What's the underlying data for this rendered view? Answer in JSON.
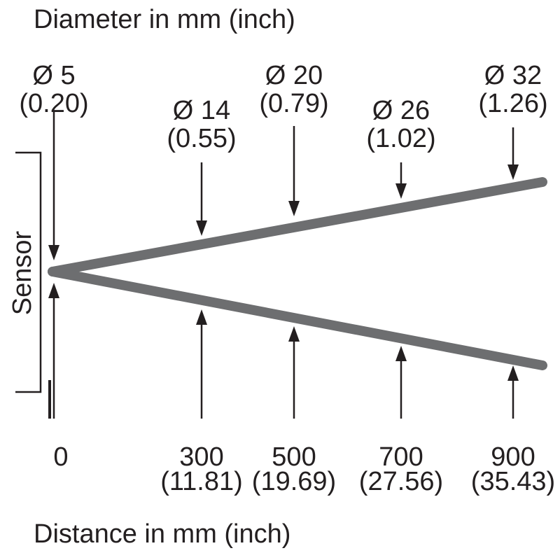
{
  "title": "Diameter in mm (inch)",
  "x_label": "Distance in mm (inch)",
  "sensor_label": "Sensor",
  "diameters": [
    {
      "mm": "Ø 5",
      "inch": "(0.20)"
    },
    {
      "mm": "Ø 14",
      "inch": "(0.55)"
    },
    {
      "mm": "Ø 20",
      "inch": "(0.79)"
    },
    {
      "mm": "Ø 26",
      "inch": "(1.02)"
    },
    {
      "mm": "Ø 32",
      "inch": "(1.26)"
    }
  ],
  "distances": [
    {
      "mm": "0"
    },
    {
      "mm": "300",
      "inch": "(11.81)"
    },
    {
      "mm": "500",
      "inch": "(19.69)"
    },
    {
      "mm": "700",
      "inch": "(27.56)"
    },
    {
      "mm": "900",
      "inch": "(35.43)"
    }
  ]
}
